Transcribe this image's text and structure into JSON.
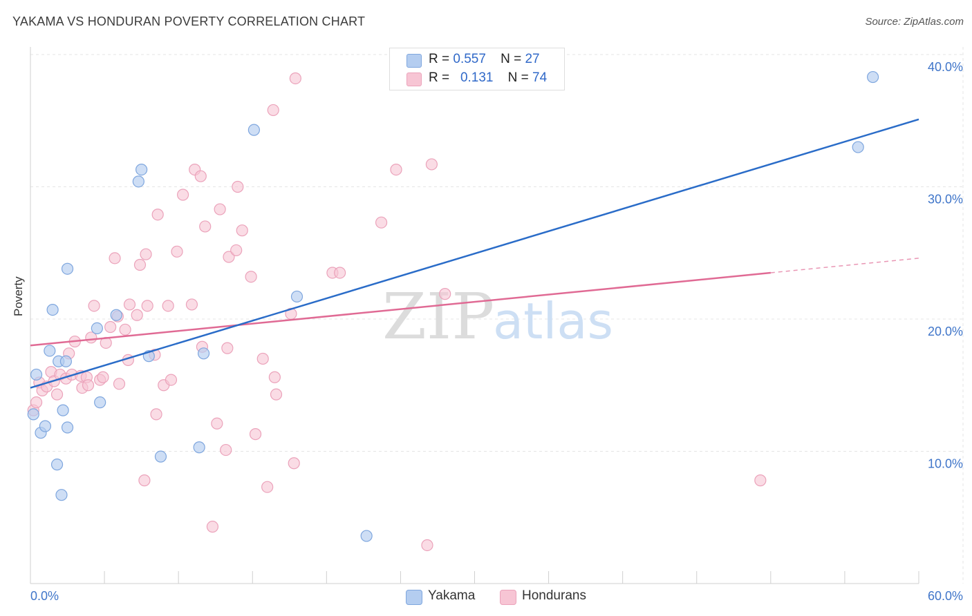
{
  "header": {
    "title": "YAKAMA VS HONDURAN POVERTY CORRELATION CHART",
    "source": "Source: ZipAtlas.com"
  },
  "watermark": {
    "zip": "ZIP",
    "atlas": "atlas"
  },
  "stats": {
    "yakama": {
      "r_label": "R =",
      "r_value": "0.557",
      "n_label": "N =",
      "n_value": "27"
    },
    "hondurans": {
      "r_label": "R =",
      "r_value": "0.131",
      "n_label": "N =",
      "n_value": "74"
    }
  },
  "legend": {
    "yakama": "Yakama",
    "hondurans": "Hondurans"
  },
  "colors": {
    "yakama_fill": "#b4cdf0",
    "yakama_stroke": "#7ea6de",
    "yakama_line": "#2a6cc8",
    "hondurans_fill": "#f7c5d4",
    "hondurans_stroke": "#eba2ba",
    "hondurans_line": "#e06a94",
    "axis_text": "#3f75c9",
    "grid": "#e4e4e4"
  },
  "chart_data": {
    "type": "scatter",
    "title": "YAKAMA VS HONDURAN POVERTY CORRELATION CHART",
    "xlabel": "",
    "ylabel": "Poverty",
    "xlim": [
      0,
      60
    ],
    "ylim": [
      0,
      40
    ],
    "x_tick_labels": [
      "0.0%",
      "60.0%"
    ],
    "y_ticks": [
      10,
      20,
      30,
      40
    ],
    "y_tick_labels": [
      "10.0%",
      "20.0%",
      "30.0%",
      "40.0%"
    ],
    "series": [
      {
        "name": "Yakama",
        "r": 0.557,
        "n": 27,
        "trend": {
          "x": [
            0,
            60
          ],
          "y": [
            14.8,
            35.1
          ]
        },
        "points": [
          [
            0.2,
            12.8
          ],
          [
            0.4,
            15.8
          ],
          [
            0.7,
            11.4
          ],
          [
            1.0,
            11.9
          ],
          [
            1.3,
            17.6
          ],
          [
            1.5,
            20.7
          ],
          [
            1.8,
            9.0
          ],
          [
            1.9,
            16.8
          ],
          [
            2.1,
            6.7
          ],
          [
            2.2,
            13.1
          ],
          [
            2.4,
            16.8
          ],
          [
            2.5,
            11.8
          ],
          [
            2.5,
            23.8
          ],
          [
            4.5,
            19.3
          ],
          [
            4.7,
            13.7
          ],
          [
            5.8,
            20.3
          ],
          [
            7.3,
            30.4
          ],
          [
            7.5,
            31.3
          ],
          [
            8.0,
            17.2
          ],
          [
            8.8,
            9.6
          ],
          [
            11.4,
            10.3
          ],
          [
            11.7,
            17.4
          ],
          [
            15.1,
            34.3
          ],
          [
            18.0,
            21.7
          ],
          [
            22.7,
            3.6
          ],
          [
            55.9,
            33.0
          ],
          [
            56.9,
            38.3
          ]
        ]
      },
      {
        "name": "Hondurans",
        "trend": {
          "x": [
            0,
            50
          ],
          "y": [
            18.0,
            23.5
          ]
        },
        "trend_dashed": {
          "x": [
            50,
            60
          ],
          "y": [
            23.5,
            24.6
          ]
        },
        "r": 0.131,
        "n": 74,
        "points": [
          [
            0.2,
            13.1
          ],
          [
            0.4,
            13.7
          ],
          [
            0.6,
            15.2
          ],
          [
            0.8,
            14.6
          ],
          [
            1.1,
            14.9
          ],
          [
            1.4,
            16.0
          ],
          [
            1.6,
            15.3
          ],
          [
            1.8,
            14.3
          ],
          [
            2.0,
            15.8
          ],
          [
            2.4,
            15.5
          ],
          [
            2.6,
            17.4
          ],
          [
            2.8,
            15.8
          ],
          [
            3.0,
            18.3
          ],
          [
            3.4,
            15.7
          ],
          [
            3.5,
            14.8
          ],
          [
            3.8,
            15.6
          ],
          [
            3.9,
            15.0
          ],
          [
            4.1,
            18.6
          ],
          [
            4.3,
            21.0
          ],
          [
            4.7,
            15.4
          ],
          [
            4.9,
            15.6
          ],
          [
            5.1,
            18.2
          ],
          [
            5.4,
            19.4
          ],
          [
            5.7,
            24.6
          ],
          [
            5.9,
            20.2
          ],
          [
            6.0,
            15.1
          ],
          [
            6.4,
            19.2
          ],
          [
            6.6,
            16.9
          ],
          [
            6.7,
            21.1
          ],
          [
            7.2,
            20.3
          ],
          [
            7.4,
            24.1
          ],
          [
            7.7,
            7.8
          ],
          [
            7.8,
            24.9
          ],
          [
            7.9,
            21.0
          ],
          [
            8.4,
            17.3
          ],
          [
            8.5,
            12.8
          ],
          [
            8.6,
            27.9
          ],
          [
            9.0,
            15.0
          ],
          [
            9.3,
            21.0
          ],
          [
            9.5,
            15.4
          ],
          [
            9.9,
            25.1
          ],
          [
            10.3,
            29.4
          ],
          [
            10.9,
            21.1
          ],
          [
            11.1,
            31.3
          ],
          [
            11.5,
            30.8
          ],
          [
            11.6,
            17.9
          ],
          [
            11.8,
            27.0
          ],
          [
            12.3,
            4.3
          ],
          [
            12.6,
            12.1
          ],
          [
            12.8,
            28.3
          ],
          [
            13.2,
            10.1
          ],
          [
            13.3,
            17.8
          ],
          [
            13.4,
            24.7
          ],
          [
            13.9,
            25.2
          ],
          [
            14.0,
            30.0
          ],
          [
            14.3,
            26.7
          ],
          [
            14.9,
            23.2
          ],
          [
            15.2,
            11.3
          ],
          [
            15.7,
            17.0
          ],
          [
            16.0,
            7.3
          ],
          [
            16.4,
            35.8
          ],
          [
            16.5,
            15.6
          ],
          [
            16.6,
            14.3
          ],
          [
            17.6,
            20.4
          ],
          [
            17.8,
            9.1
          ],
          [
            17.9,
            38.2
          ],
          [
            20.4,
            23.5
          ],
          [
            20.9,
            23.5
          ],
          [
            23.7,
            27.3
          ],
          [
            24.7,
            31.3
          ],
          [
            26.8,
            2.9
          ],
          [
            27.1,
            31.7
          ],
          [
            28.0,
            21.9
          ],
          [
            49.3,
            7.8
          ]
        ]
      }
    ]
  }
}
